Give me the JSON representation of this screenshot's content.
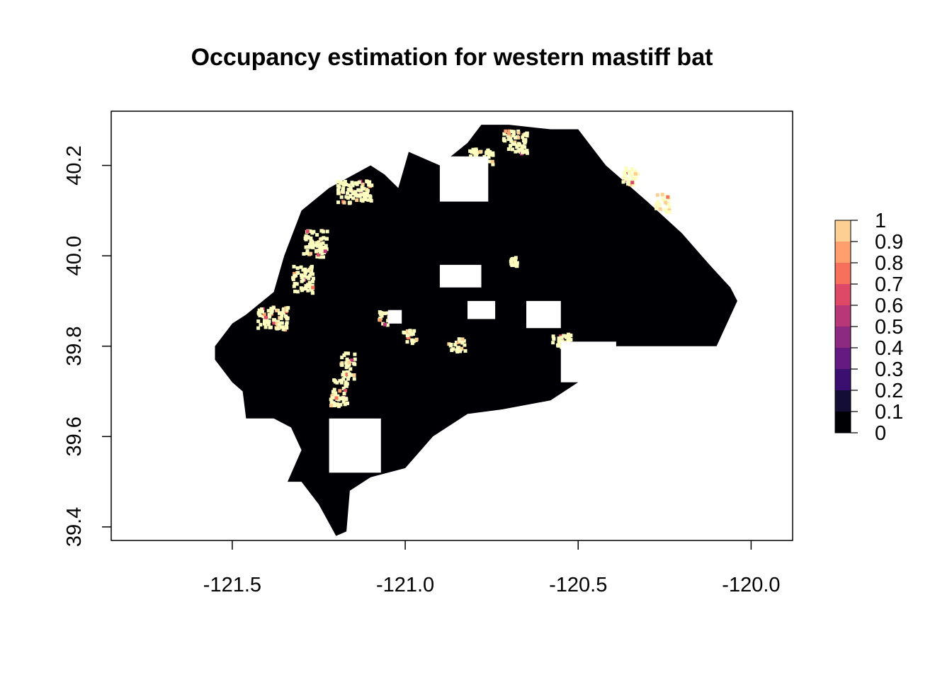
{
  "chart_data": {
    "type": "heatmap",
    "title": "Occupancy estimation for western mastiff bat",
    "xlabel": "",
    "ylabel": "",
    "xlim": [
      -121.85,
      -119.88
    ],
    "ylim": [
      39.37,
      40.32
    ],
    "x_ticks": [
      -121.5,
      -121.0,
      -120.5,
      -120.0
    ],
    "x_tick_labels": [
      "-121.5",
      "-121.0",
      "-120.5",
      "-120.0"
    ],
    "y_ticks": [
      39.4,
      39.6,
      39.8,
      40.0,
      40.2
    ],
    "y_tick_labels": [
      "39.4",
      "39.6",
      "39.8",
      "40.0",
      "40.2"
    ],
    "legend": {
      "placement": "right",
      "breaks": [
        0,
        0.1,
        0.2,
        0.3,
        0.4,
        0.5,
        0.6,
        0.7,
        0.8,
        0.9,
        1
      ],
      "labels": [
        "0",
        "0.1",
        "0.2",
        "0.3",
        "0.4",
        "0.5",
        "0.6",
        "0.7",
        "0.8",
        "0.9",
        "1"
      ],
      "colors": [
        "#000004",
        "#140e36",
        "#3b0f70",
        "#641a80",
        "#8c2981",
        "#b73779",
        "#de4968",
        "#f7705c",
        "#fe9f6d",
        "#fecf92",
        "#fcfdbf"
      ]
    },
    "raster_summary": {
      "background_value": 0,
      "high_occupancy_value": 1,
      "region_outline_lonlat": [
        [
          -120.99,
          40.23
        ],
        [
          -120.9,
          40.2
        ],
        [
          -120.82,
          40.25
        ],
        [
          -120.78,
          40.29
        ],
        [
          -120.7,
          40.29
        ],
        [
          -120.58,
          40.28
        ],
        [
          -120.5,
          40.28
        ],
        [
          -120.42,
          40.2
        ],
        [
          -120.3,
          40.12
        ],
        [
          -120.2,
          40.05
        ],
        [
          -120.12,
          39.98
        ],
        [
          -120.06,
          39.93
        ],
        [
          -120.04,
          39.9
        ],
        [
          -120.1,
          39.8
        ],
        [
          -120.3,
          39.8
        ],
        [
          -120.45,
          39.8
        ],
        [
          -120.5,
          39.72
        ],
        [
          -120.58,
          39.68
        ],
        [
          -120.72,
          39.66
        ],
        [
          -120.82,
          39.65
        ],
        [
          -120.92,
          39.6
        ],
        [
          -121.0,
          39.53
        ],
        [
          -121.1,
          39.51
        ],
        [
          -121.16,
          39.48
        ],
        [
          -121.17,
          39.39
        ],
        [
          -121.2,
          39.38
        ],
        [
          -121.25,
          39.45
        ],
        [
          -121.3,
          39.5
        ],
        [
          -121.34,
          39.5
        ],
        [
          -121.3,
          39.57
        ],
        [
          -121.33,
          39.62
        ],
        [
          -121.38,
          39.64
        ],
        [
          -121.46,
          39.64
        ],
        [
          -121.47,
          39.7
        ],
        [
          -121.5,
          39.72
        ],
        [
          -121.55,
          39.77
        ],
        [
          -121.55,
          39.8
        ],
        [
          -121.5,
          39.85
        ],
        [
          -121.46,
          39.87
        ],
        [
          -121.38,
          39.92
        ],
        [
          -121.35,
          40.0
        ],
        [
          -121.3,
          40.1
        ],
        [
          -121.22,
          40.15
        ],
        [
          -121.1,
          40.2
        ],
        [
          -121.06,
          40.18
        ],
        [
          -121.02,
          40.15
        ]
      ],
      "high_occupancy_patches_lonlat": [
        [
          -121.43,
          39.84,
          0.09,
          0.05
        ],
        [
          -121.33,
          39.92,
          0.06,
          0.06
        ],
        [
          -121.3,
          40.0,
          0.07,
          0.06
        ],
        [
          -121.2,
          40.12,
          0.1,
          0.05
        ],
        [
          -121.22,
          39.67,
          0.05,
          0.06
        ],
        [
          -121.19,
          39.73,
          0.04,
          0.06
        ],
        [
          -120.72,
          40.23,
          0.07,
          0.05
        ],
        [
          -120.82,
          40.2,
          0.07,
          0.04
        ],
        [
          -120.38,
          40.16,
          0.05,
          0.04
        ],
        [
          -120.28,
          40.1,
          0.04,
          0.04
        ],
        [
          -120.58,
          39.8,
          0.06,
          0.03
        ],
        [
          -120.88,
          39.79,
          0.05,
          0.03
        ],
        [
          -121.01,
          39.81,
          0.04,
          0.03
        ],
        [
          -121.08,
          39.85,
          0.03,
          0.03
        ],
        [
          -120.7,
          39.98,
          0.02,
          0.02
        ]
      ],
      "no_data_holes_lonlat": [
        [
          -120.9,
          40.12,
          0.14,
          0.1
        ],
        [
          -120.9,
          39.93,
          0.12,
          0.05
        ],
        [
          -120.82,
          39.86,
          0.08,
          0.04
        ],
        [
          -120.65,
          39.84,
          0.1,
          0.06
        ],
        [
          -120.55,
          39.72,
          0.16,
          0.09
        ],
        [
          -121.05,
          39.85,
          0.04,
          0.03
        ],
        [
          -121.22,
          39.52,
          0.15,
          0.12
        ]
      ]
    }
  }
}
